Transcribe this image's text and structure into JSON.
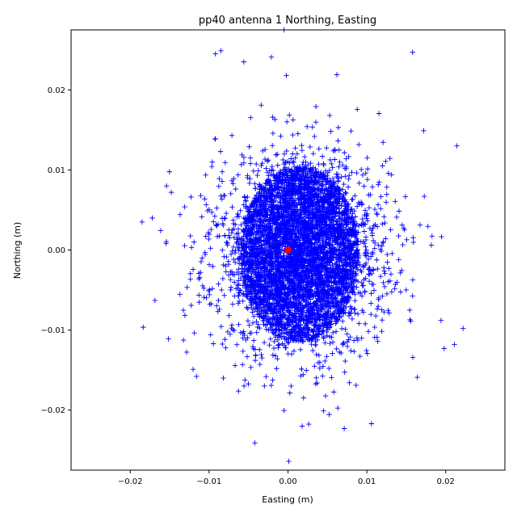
{
  "chart_data": {
    "type": "scatter",
    "title": "pp40 antenna 1 Northing, Easting",
    "xlabel": "Easting (m)",
    "ylabel": "Northing (m)",
    "xlim": [
      -0.0275,
      0.0275
    ],
    "ylim": [
      -0.0275,
      0.0275
    ],
    "xticks": [
      -0.02,
      -0.01,
      0.0,
      0.01,
      0.02
    ],
    "yticks": [
      -0.02,
      -0.01,
      0.0,
      0.01,
      0.02
    ],
    "xtick_labels": [
      "−0.02",
      "−0.01",
      "0.00",
      "0.01",
      "0.02"
    ],
    "ytick_labels": [
      "−0.02",
      "−0.01",
      "0.00",
      "0.01",
      "0.02"
    ],
    "grid": false,
    "series": [
      {
        "marker": "+",
        "color": "#0000ff",
        "cloud": {
          "center": [
            0.0015,
            -0.0005
          ],
          "core_radius": [
            0.0075,
            0.011
          ],
          "spread_sd": [
            0.0055,
            0.0062
          ],
          "count": 6000
        },
        "outliers": [
          [
            -0.0005,
            0.0275
          ],
          [
            -0.0092,
            0.0245
          ],
          [
            -0.0085,
            0.0249
          ],
          [
            -0.0056,
            0.0235
          ],
          [
            -0.0021,
            0.0241
          ],
          [
            -0.0002,
            0.0218
          ],
          [
            0.0062,
            0.0219
          ],
          [
            0.0158,
            0.0247
          ],
          [
            0.0172,
            0.0149
          ],
          [
            -0.0185,
            0.0035
          ],
          [
            -0.0172,
            0.004
          ],
          [
            -0.0154,
            0.008
          ],
          [
            0.0222,
            -0.0098
          ],
          [
            0.0211,
            -0.0118
          ],
          [
            0.0198,
            -0.0123
          ],
          [
            0.0194,
            -0.0088
          ],
          [
            0.0164,
            -0.0159
          ],
          [
            0.0001,
            -0.0264
          ],
          [
            -0.0042,
            -0.0241
          ],
          [
            0.0018,
            -0.022
          ],
          [
            -0.0082,
            -0.016
          ],
          [
            -0.0092,
            0.0139
          ],
          [
            0.0045,
            -0.0201
          ],
          [
            -0.0102,
            0.0049
          ]
        ]
      },
      {
        "marker": "o",
        "color": "#ff0000",
        "points": [
          [
            0.0,
            0.0
          ]
        ]
      }
    ]
  }
}
